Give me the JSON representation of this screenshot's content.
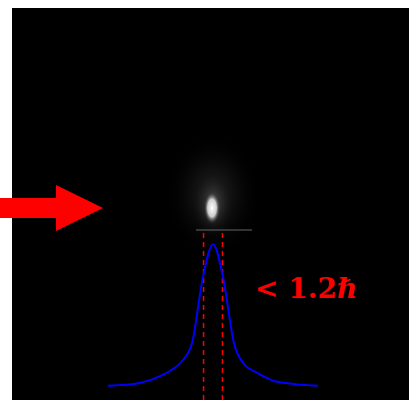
{
  "chart_data": {
    "type": "line",
    "x": [
      -10,
      -9,
      -8,
      -7,
      -6,
      -5,
      -4,
      -3,
      -2,
      -1,
      0,
      1,
      2,
      3,
      4,
      5,
      6,
      7,
      8,
      9,
      10
    ],
    "values": [
      0,
      0.005,
      0.01,
      0.02,
      0.04,
      0.07,
      0.11,
      0.17,
      0.3,
      0.75,
      1,
      0.75,
      0.3,
      0.15,
      0.1,
      0.06,
      0.03,
      0.02,
      0.01,
      0.005,
      0
    ],
    "color": "#0000ff",
    "xlim": [
      -10,
      10
    ],
    "ylim": [
      -0.1,
      1.1
    ],
    "tick_labels": false,
    "dashed_lines": [
      -0.9,
      0.9
    ],
    "annotation": "< 1.2ℏ"
  }
}
